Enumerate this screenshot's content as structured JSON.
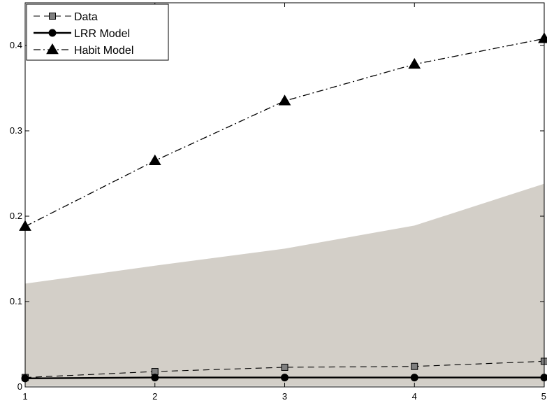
{
  "chart_data": {
    "type": "line",
    "title": "",
    "xlabel": "",
    "ylabel": "",
    "x": [
      1,
      2,
      3,
      4,
      5
    ],
    "xlim": [
      1,
      5
    ],
    "ylim": [
      0,
      0.45
    ],
    "xticks": [
      1,
      2,
      3,
      4,
      5
    ],
    "yticks": [
      0,
      0.1,
      0.2,
      0.3,
      0.4
    ],
    "grid": false,
    "legend_position": "top-left",
    "band": {
      "lower": [
        0.001,
        0.001,
        0.001,
        0.001,
        0.001
      ],
      "upper": [
        0.121,
        0.142,
        0.162,
        0.189,
        0.238
      ],
      "color": "#d3cfc8"
    },
    "series": [
      {
        "name": "Data",
        "values": [
          0.011,
          0.018,
          0.023,
          0.024,
          0.03
        ],
        "color": "#000000",
        "marker_fill": "#808080",
        "line_style": "dashed",
        "marker": "square"
      },
      {
        "name": "LRR Model",
        "values": [
          0.01,
          0.011,
          0.011,
          0.011,
          0.011
        ],
        "color": "#000000",
        "marker_fill": "#000000",
        "line_style": "solid",
        "marker": "circle"
      },
      {
        "name": "Habit Model",
        "values": [
          0.188,
          0.265,
          0.335,
          0.378,
          0.408
        ],
        "color": "#000000",
        "marker_fill": "#000000",
        "line_style": "dashdot",
        "marker": "triangle"
      }
    ]
  }
}
